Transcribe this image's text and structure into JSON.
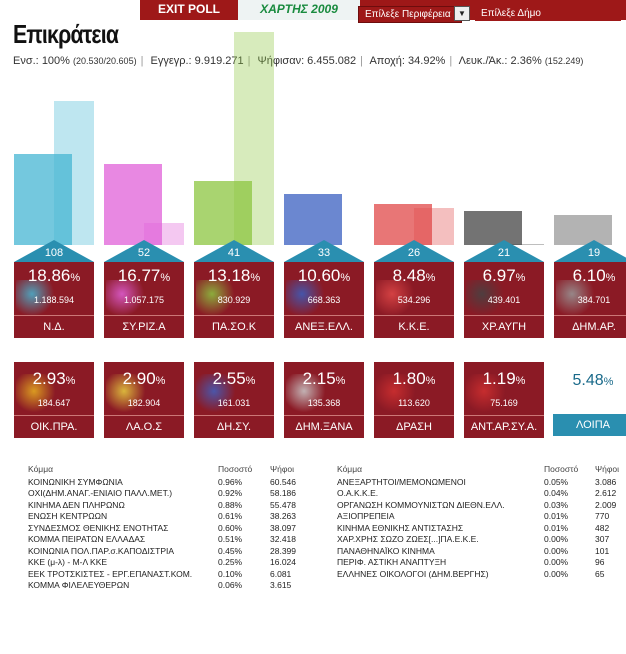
{
  "header": {
    "exit_poll": "EXIT POLL",
    "year": "ΧΑΡΤΗΣ 2009",
    "region_select": "Επίλεξε Περιφέρεια",
    "muni_select": "Επίλεξε Δήμο",
    "dropdown_icon": "chevron-down-icon"
  },
  "title": "Επικράτεια",
  "stats": {
    "counted_label": "Ενσ.:",
    "counted_value": "100%",
    "counted_detail": "(20.530/20.605)",
    "registered": "Εγγεγρ.: 9.919.271",
    "voted": "Ψήφισαν: 6.455.082",
    "abstention": "Αποχή: 34.92%",
    "blank_label": "Λευκ./Άκ.: 2.36%",
    "blank_detail": "(152.249)"
  },
  "colors": {
    "card_bg": "#8b1a25",
    "seat_badge": "#2a8fb0",
    "topbar": "#9e1818"
  },
  "parties": [
    {
      "name": "Ν.Δ.",
      "percent": "18.86",
      "votes": "1.188.594",
      "seats": "108",
      "bar_color": "#46b6d3",
      "prev_share": 29.66
    },
    {
      "name": "ΣΥ.ΡΙΖ.Α",
      "percent": "16.77",
      "votes": "1.057.175",
      "seats": "52",
      "bar_color": "#e060d8",
      "prev_share": 4.6
    },
    {
      "name": "ΠΑ.ΣΟ.Κ",
      "percent": "13.18",
      "votes": "830.929",
      "seats": "41",
      "bar_color": "#8cc540",
      "prev_share": 43.92
    },
    {
      "name": "ΑΝΕΞ.ΕΛΛ.",
      "percent": "10.60",
      "votes": "668.363",
      "seats": "33",
      "bar_color": "#3a5fc0",
      "prev_share": 0
    },
    {
      "name": "Κ.Κ.Ε.",
      "percent": "8.48",
      "votes": "534.296",
      "seats": "26",
      "bar_color": "#e04848",
      "prev_share": 7.54
    },
    {
      "name": "ΧΡ.ΑΥΓΗ",
      "percent": "6.97",
      "votes": "439.401",
      "seats": "21",
      "bar_color": "#444444",
      "prev_share": 0.29
    },
    {
      "name": "ΔΗΜ.ΑΡ.",
      "percent": "6.10",
      "votes": "384.701",
      "seats": "19",
      "bar_color": "#999999",
      "prev_share": 0
    }
  ],
  "small_parties": [
    {
      "name": "ΟΙΚ.ΠΡΑ.",
      "percent": "2.93",
      "votes": "184.647"
    },
    {
      "name": "ΛΑ.Ο.Σ",
      "percent": "2.90",
      "votes": "182.904"
    },
    {
      "name": "ΔΗ.ΣΥ.",
      "percent": "2.55",
      "votes": "161.031"
    },
    {
      "name": "ΔΗΜ.ΞΑΝΑ",
      "percent": "2.15",
      "votes": "135.368"
    },
    {
      "name": "ΔΡΑΣΗ",
      "percent": "1.80",
      "votes": "113.620"
    },
    {
      "name": "ΑΝΤ.ΑΡ.ΣΥ.Α.",
      "percent": "1.19",
      "votes": "75.169"
    }
  ],
  "others": {
    "name": "ΛΟΙΠΑ",
    "percent": "5.48"
  },
  "table_headers": {
    "party": "Κόμμα",
    "percent": "Ποσοστό",
    "votes": "Ψήφοι"
  },
  "table_left": [
    {
      "party": "ΚΟΙΝΩΝΙΚΗ ΣΥΜΦΩΝΙΑ",
      "percent": "0.96%",
      "votes": "60.546"
    },
    {
      "party": "ΟΧΙ(ΔΗΜ.ΑΝΑΓ.-ΕΝΙΑΙΟ ΠΑΛΛ.ΜΕΤ.)",
      "percent": "0.92%",
      "votes": "58.186"
    },
    {
      "party": "ΚΙΝΗΜΑ ΔΕΝ ΠΛΗΡΩΝΩ",
      "percent": "0.88%",
      "votes": "55.478"
    },
    {
      "party": "ΕΝΩΣΗ ΚΕΝΤΡΩΩΝ",
      "percent": "0.61%",
      "votes": "38.263"
    },
    {
      "party": "ΣΥΝΔΕΣΜΟΣ ΘΕΝΙΚΗΣ ΕΝΟΤΗΤΑΣ",
      "percent": "0.60%",
      "votes": "38.097"
    },
    {
      "party": "ΚΟΜΜΑ ΠΕΙΡΑΤΩΝ ΕΛΛΑΔΑΣ",
      "percent": "0.51%",
      "votes": "32.418"
    },
    {
      "party": "ΚΟΙΝΩΝΙΑ ΠΟΛ.ΠΑΡ.σ.ΚΑΠΟΔΙΣΤΡΙΑ",
      "percent": "0.45%",
      "votes": "28.399"
    },
    {
      "party": "ΚΚΕ (μ-λ) - Μ-Λ ΚΚΕ",
      "percent": "0.25%",
      "votes": "16.024"
    },
    {
      "party": "ΕΕΚ ΤΡΟΤΣΚΙΣΤΕΣ - ΕΡΓ.ΕΠΑΝΑΣΤ.ΚΟΜ.",
      "percent": "0.10%",
      "votes": "6.081"
    },
    {
      "party": "ΚΟΜΜΑ ΦΙΛΕΛΕΥΘΕΡΩΝ",
      "percent": "0.06%",
      "votes": "3.615"
    }
  ],
  "table_right": [
    {
      "party": "ΑΝΕΞΑΡΤΗΤΟΙ/ΜΕΜΟΝΩΜΕΝΟΙ",
      "percent": "0.05%",
      "votes": "3.086"
    },
    {
      "party": "Ο.Α.Κ.Κ.Ε.",
      "percent": "0.04%",
      "votes": "2.612"
    },
    {
      "party": "ΟΡΓΑΝΩΣΗ ΚΟΜΜΟΥΝΙΣΤΩΝ ΔΙΕΘΝ.ΕΛΛ.",
      "percent": "0.03%",
      "votes": "2.009"
    },
    {
      "party": "ΑΞΙΟΠΡΕΠΕΙΑ",
      "percent": "0.01%",
      "votes": "770"
    },
    {
      "party": "ΚΙΝΗΜΑ ΕΘΝΙΚΗΣ ΑΝΤΙΣΤΑΣΗΣ",
      "percent": "0.01%",
      "votes": "482"
    },
    {
      "party": "ΧΑΡ.ΧΡΗΣ ΣΩΖΟ ΖΩΕΣ[...]ΠΑ.Ε.Κ.Ε.",
      "percent": "0.00%",
      "votes": "307"
    },
    {
      "party": "ΠΑΝΑΘΗΝΑΪΚΟ ΚΙΝΗΜΑ",
      "percent": "0.00%",
      "votes": "101"
    },
    {
      "party": "ΠΕΡΙΦ. ΑΣΤΙΚΗ ΑΝΑΠΤΥΞΗ",
      "percent": "0.00%",
      "votes": "96"
    },
    {
      "party": "ΕΛΛΗΝΕΣ ΟΙΚΟΛΟΓΟΙ (ΔΗΜ.ΒΕΡΓΗΣ)",
      "percent": "0.00%",
      "votes": "65"
    }
  ]
}
